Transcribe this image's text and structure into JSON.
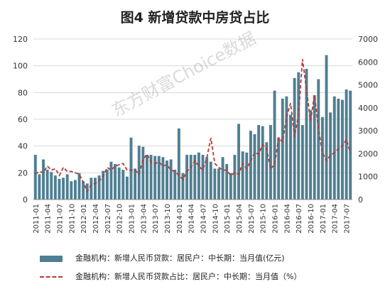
{
  "title": "图4 新增贷款中房贷占比",
  "watermark": "东方财富Choice数据",
  "colors": {
    "bar": "#4f7f92",
    "line": "#b23a36",
    "grid": "#d9d9d9"
  },
  "chart_data": {
    "type": "bar+line",
    "title": "图4 新增贷款中房贷占比",
    "grid": true,
    "legend_position": "bottom",
    "x": [
      "2011-01",
      "2011-02",
      "2011-03",
      "2011-04",
      "2011-05",
      "2011-06",
      "2011-07",
      "2011-08",
      "2011-09",
      "2011-10",
      "2011-11",
      "2011-12",
      "2012-01",
      "2012-02",
      "2012-03",
      "2012-04",
      "2012-05",
      "2012-06",
      "2012-07",
      "2012-08",
      "2012-09",
      "2012-10",
      "2012-11",
      "2012-12",
      "2013-01",
      "2013-02",
      "2013-03",
      "2013-04",
      "2013-05",
      "2013-06",
      "2013-07",
      "2013-08",
      "2013-09",
      "2013-10",
      "2013-11",
      "2013-12",
      "2014-01",
      "2014-02",
      "2014-03",
      "2014-04",
      "2014-05",
      "2014-06",
      "2014-07",
      "2014-08",
      "2014-09",
      "2014-10",
      "2014-11",
      "2014-12",
      "2015-01",
      "2015-02",
      "2015-03",
      "2015-04",
      "2015-05",
      "2015-06",
      "2015-07",
      "2015-08",
      "2015-09",
      "2015-10",
      "2015-11",
      "2015-12",
      "2016-01",
      "2016-02",
      "2016-03",
      "2016-04",
      "2016-05",
      "2016-06",
      "2016-07",
      "2016-08",
      "2016-09",
      "2016-10",
      "2016-11",
      "2016-12",
      "2017-01",
      "2017-02",
      "2017-03",
      "2017-04",
      "2017-05",
      "2017-06",
      "2017-07",
      "2017-08"
    ],
    "x_tick_labels": [
      "2011-01",
      "2011-04",
      "2011-07",
      "2011-10",
      "2012-01",
      "2012-04",
      "2012-07",
      "2012-10",
      "2013-01",
      "2013-04",
      "2013-07",
      "2013-10",
      "2014-01",
      "2014-04",
      "2014-07",
      "2014-10",
      "2015-01",
      "2015-04",
      "2015-07",
      "2015-10",
      "2016-01",
      "2016-04",
      "2016-07",
      "2016-10",
      "2017-01",
      "2017-04",
      "2017-07"
    ],
    "y_left": {
      "ticks": [
        "0",
        "20",
        "40",
        "60",
        "80",
        "100",
        "120"
      ],
      "range": [
        0,
        120
      ]
    },
    "y_right": {
      "ticks": [
        "0",
        "1000",
        "2000",
        "3000",
        "4000",
        "5000",
        "6000",
        "7000"
      ],
      "range": [
        0,
        7000
      ]
    },
    "series": [
      {
        "name": "金融机构：新增人民币贷款：居民户：中长期：当月值(亿元)",
        "type": "bar",
        "axis": "right",
        "values": [
          1950,
          1100,
          1750,
          1300,
          1200,
          1050,
          900,
          950,
          1100,
          800,
          850,
          1150,
          800,
          700,
          950,
          950,
          1050,
          1250,
          1300,
          1650,
          1550,
          1400,
          1300,
          1000,
          2700,
          1350,
          2350,
          2300,
          1950,
          1950,
          1900,
          1900,
          1850,
          1700,
          1750,
          1300,
          3100,
          1150,
          1950,
          1950,
          1950,
          2050,
          1950,
          1850,
          1650,
          1350,
          1350,
          1850,
          1550,
          1150,
          1950,
          3300,
          2100,
          2050,
          3000,
          2850,
          3250,
          3200,
          2500,
          3250,
          4750,
          2700,
          4400,
          4500,
          3700,
          5300,
          5550,
          3250,
          5700,
          3900,
          4550,
          5250,
          3600,
          6300,
          3800,
          4500,
          4400,
          4350,
          4800,
          4750
        ]
      },
      {
        "name": "金融机构：新增人民币贷款占比：居民户：中长期：当月值（%）",
        "type": "line",
        "axis": "left",
        "values": [
          19,
          21,
          20,
          25,
          22,
          23,
          18,
          24,
          21,
          21,
          20,
          19,
          13,
          6,
          11,
          12,
          14,
          17,
          24,
          22,
          25,
          26,
          27,
          22,
          22,
          22,
          19,
          30,
          34,
          28,
          27,
          28,
          25,
          26,
          22,
          21,
          18,
          15,
          21,
          24,
          29,
          25,
          22,
          31,
          46,
          27,
          24,
          22,
          22,
          18,
          20,
          19,
          27,
          23,
          29,
          35,
          34,
          41,
          38,
          23,
          26,
          46,
          43,
          62,
          72,
          47,
          63,
          105,
          82,
          59,
          78,
          53,
          35,
          29,
          33,
          35,
          38,
          40,
          45,
          35
        ]
      }
    ]
  }
}
